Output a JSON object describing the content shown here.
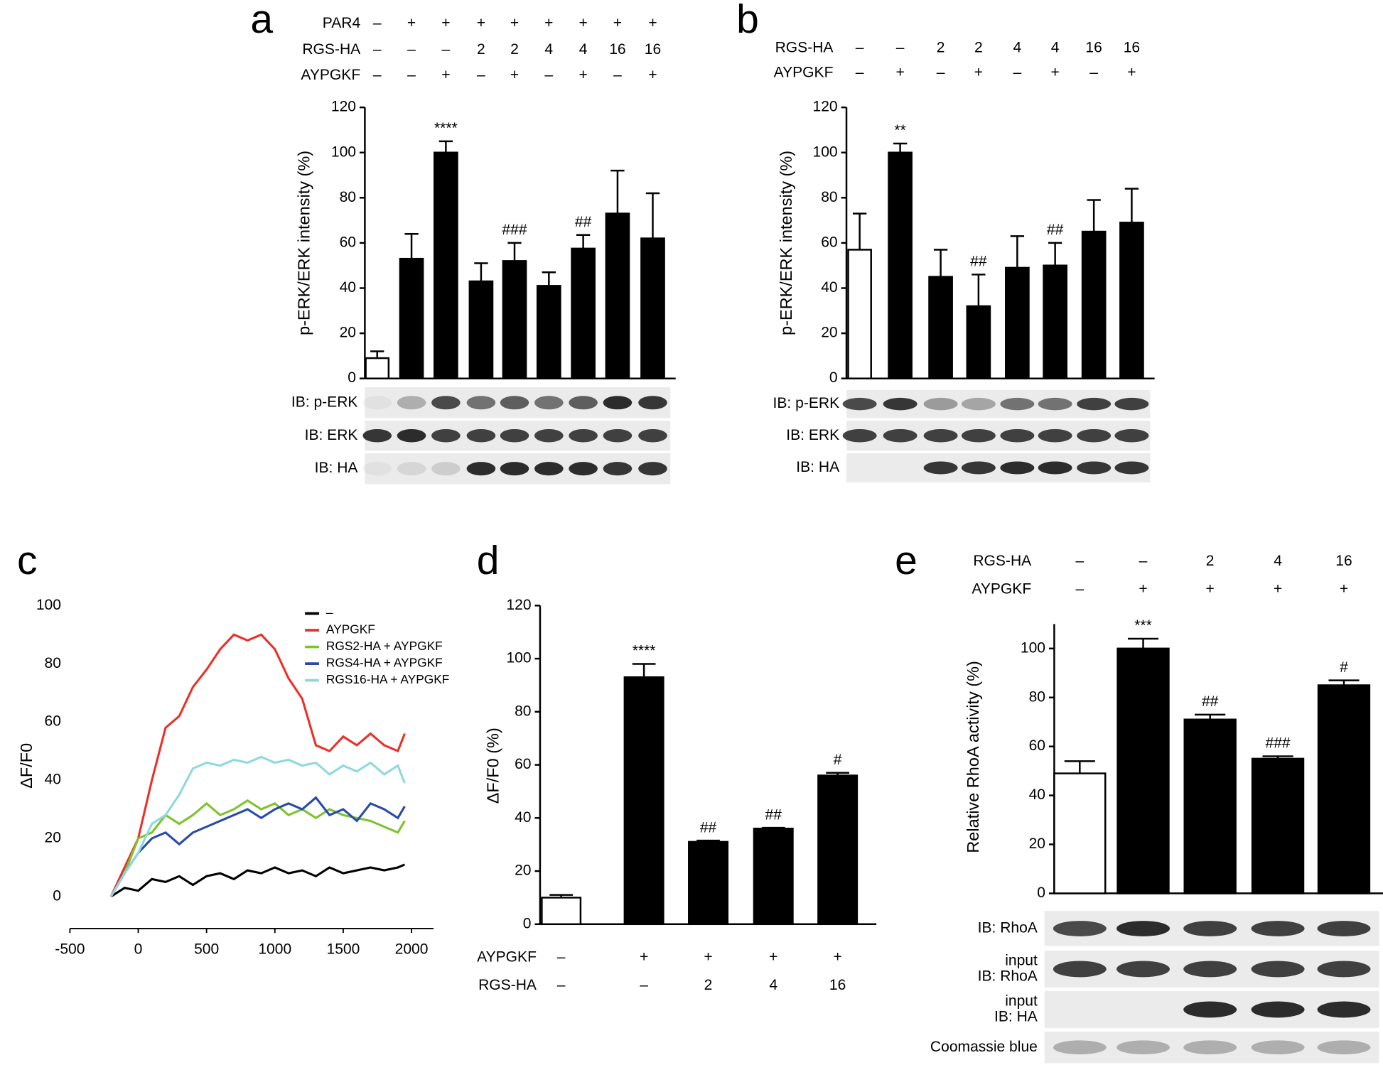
{
  "chart_data": [
    {
      "type": "bar",
      "panel_label": "a",
      "ylabel": "p-ERK/ERK intensity (%)",
      "ylim": [
        0,
        120
      ],
      "yticks": [
        0,
        20,
        40,
        60,
        80,
        100,
        120
      ],
      "values": [
        9,
        53,
        100,
        43,
        52,
        41,
        57.5,
        73,
        62
      ],
      "errors": [
        3,
        11,
        5,
        8,
        8,
        6,
        6,
        19,
        20
      ],
      "colors": [
        "#ffffff",
        "#000000",
        "#000000",
        "#000000",
        "#000000",
        "#000000",
        "#000000",
        "#000000",
        "#000000"
      ],
      "annotations": [
        null,
        null,
        "****",
        null,
        "###",
        null,
        "##",
        null,
        null
      ],
      "conditions": [
        {
          "label": "PAR4",
          "values": [
            "–",
            "+",
            "+",
            "+",
            "+",
            "+",
            "+",
            "+",
            "+"
          ]
        },
        {
          "label": "RGS-HA",
          "values": [
            "–",
            "–",
            "–",
            "2",
            "2",
            "4",
            "4",
            "16",
            "16"
          ]
        },
        {
          "label": "AYPGKF",
          "values": [
            "–",
            "–",
            "+",
            "–",
            "+",
            "–",
            "+",
            "–",
            "+"
          ]
        }
      ],
      "blots": [
        [
          "IB: p-ERK"
        ],
        [
          "IB: ERK"
        ],
        [
          "IB: HA"
        ]
      ]
    },
    {
      "type": "bar",
      "panel_label": "b",
      "ylabel": "p-ERK/ERK intensity (%)",
      "ylim": [
        0,
        120
      ],
      "yticks": [
        0,
        20,
        40,
        60,
        80,
        100,
        120
      ],
      "values": [
        57,
        100,
        45,
        32,
        49,
        50,
        65,
        69
      ],
      "errors": [
        16,
        4,
        12,
        14,
        14,
        10,
        14,
        15
      ],
      "colors": [
        "#ffffff",
        "#000000",
        "#000000",
        "#000000",
        "#000000",
        "#000000",
        "#000000",
        "#000000"
      ],
      "annotations": [
        null,
        "**",
        null,
        "##",
        null,
        "##",
        null,
        null
      ],
      "conditions": [
        {
          "label": "RGS-HA",
          "values": [
            "–",
            "–",
            "2",
            "2",
            "4",
            "4",
            "16",
            "16"
          ]
        },
        {
          "label": "AYPGKF",
          "values": [
            "–",
            "+",
            "–",
            "+",
            "–",
            "+",
            "–",
            "+"
          ]
        }
      ],
      "blots": [
        [
          "IB: p-ERK"
        ],
        [
          "IB: ERK"
        ],
        [
          "IB: HA"
        ]
      ]
    },
    {
      "type": "line",
      "panel_label": "c",
      "ylabel": "ΔF/F0",
      "xlim": [
        -500,
        2000
      ],
      "xticks": [
        -500,
        0,
        500,
        1000,
        1500,
        2000
      ],
      "ylim": [
        -11,
        100
      ],
      "yticks": [
        0,
        20,
        40,
        60,
        80,
        100
      ],
      "x": [
        -200,
        -100,
        0,
        100,
        200,
        300,
        400,
        500,
        600,
        700,
        800,
        900,
        1000,
        1100,
        1200,
        1300,
        1400,
        1500,
        1600,
        1700,
        1800,
        1900,
        1950
      ],
      "series": [
        {
          "name": "–",
          "color": "#000000",
          "values": [
            0,
            3,
            2,
            6,
            5,
            7,
            4,
            7,
            8,
            6,
            9,
            8,
            10,
            8,
            9,
            7,
            10,
            8,
            9,
            10,
            9,
            10,
            11
          ]
        },
        {
          "name": "AYPGKF",
          "color": "#e8322a",
          "values": [
            0,
            10,
            20,
            40,
            58,
            62,
            72,
            78,
            85,
            90,
            88,
            90,
            85,
            75,
            68,
            52,
            50,
            55,
            52,
            56,
            52,
            50,
            56
          ]
        },
        {
          "name": "RGS2-HA + AYPGKF",
          "color": "#7dc42a",
          "values": [
            0,
            8,
            20,
            22,
            28,
            25,
            28,
            32,
            28,
            30,
            33,
            30,
            32,
            28,
            30,
            27,
            30,
            28,
            27,
            26,
            24,
            22,
            26
          ]
        },
        {
          "name": "RGS4-HA + AYPGKF",
          "color": "#2a4aa8",
          "values": [
            0,
            8,
            15,
            20,
            22,
            18,
            22,
            24,
            26,
            28,
            30,
            27,
            30,
            32,
            30,
            34,
            28,
            30,
            26,
            32,
            30,
            27,
            31
          ]
        },
        {
          "name": "RGS16-HA + AYPGKF",
          "color": "#8fd8e0",
          "values": [
            0,
            8,
            15,
            25,
            28,
            35,
            44,
            46,
            45,
            47,
            46,
            48,
            46,
            47,
            45,
            46,
            42,
            45,
            43,
            46,
            42,
            45,
            39
          ]
        }
      ]
    },
    {
      "type": "bar",
      "panel_label": "d",
      "ylabel": "ΔF/F0 (%)",
      "ylim": [
        0,
        120
      ],
      "yticks": [
        0,
        20,
        40,
        60,
        80,
        100,
        120
      ],
      "values": [
        10,
        93,
        31,
        36,
        56
      ],
      "errors": [
        1,
        5,
        0.5,
        0.3,
        1
      ],
      "colors": [
        "#ffffff",
        "#000000",
        "#000000",
        "#000000",
        "#000000"
      ],
      "annotations": [
        null,
        "****",
        "##",
        "##",
        "#"
      ],
      "conditions": [
        {
          "label": "AYPGKF",
          "values": [
            "–",
            "+",
            "+",
            "+",
            "+"
          ]
        },
        {
          "label": "RGS-HA",
          "values": [
            "–",
            "–",
            "2",
            "4",
            "16"
          ]
        }
      ]
    },
    {
      "type": "bar",
      "panel_label": "e",
      "ylabel": "Relative RhoA activity (%)",
      "ylim": [
        0,
        110
      ],
      "yticks": [
        0,
        20,
        40,
        60,
        80,
        100
      ],
      "values": [
        49,
        100,
        71,
        55,
        85
      ],
      "errors": [
        5,
        4,
        2,
        1,
        2
      ],
      "colors": [
        "#ffffff",
        "#000000",
        "#000000",
        "#000000",
        "#000000"
      ],
      "annotations": [
        null,
        "***",
        "##",
        "###",
        "#"
      ],
      "conditions": [
        {
          "label": "RGS-HA",
          "values": [
            "–",
            "–",
            "2",
            "4",
            "16"
          ]
        },
        {
          "label": "AYPGKF",
          "values": [
            "–",
            "+",
            "+",
            "+",
            "+"
          ]
        }
      ],
      "blots": [
        [
          "IB: RhoA"
        ],
        [
          "input",
          "IB: RhoA"
        ],
        [
          "input",
          "IB: HA"
        ],
        [
          "Coomassie blue"
        ]
      ]
    }
  ]
}
